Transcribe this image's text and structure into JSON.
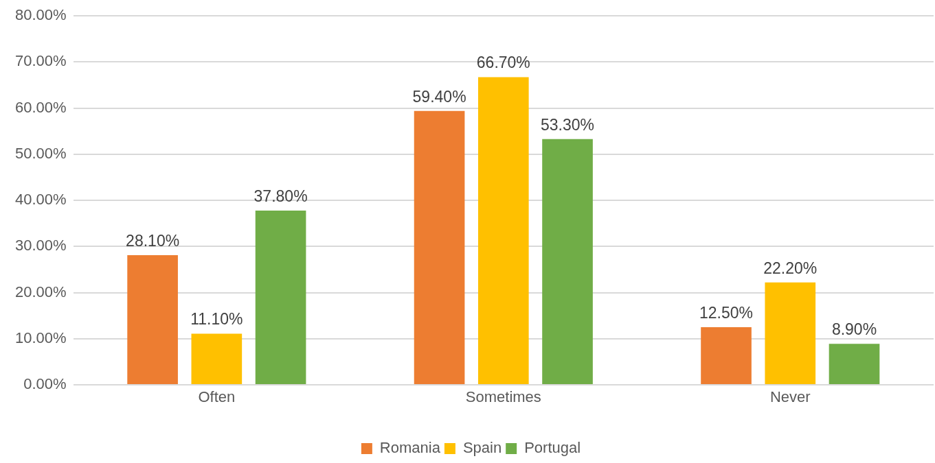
{
  "chart_data": {
    "type": "bar",
    "categories": [
      "Often",
      "Sometimes",
      "Never"
    ],
    "series": [
      {
        "name": "Romania",
        "color": "#ed7d31",
        "values": [
          28.1,
          59.4,
          12.5
        ],
        "value_labels": [
          "28.10%",
          "59.40%",
          "12.50%"
        ]
      },
      {
        "name": "Spain",
        "color": "#ffc000",
        "values": [
          11.1,
          66.7,
          22.2
        ],
        "value_labels": [
          "11.10%",
          "66.70%",
          "22.20%"
        ]
      },
      {
        "name": "Portugal",
        "color": "#70ad47",
        "values": [
          37.8,
          53.3,
          8.9
        ],
        "value_labels": [
          "37.80%",
          "53.30%",
          "8.90%"
        ]
      }
    ],
    "ylim": [
      0,
      80
    ],
    "yticks": [
      {
        "value": 0,
        "label": "0.00%"
      },
      {
        "value": 10,
        "label": "10.00%"
      },
      {
        "value": 20,
        "label": "20.00%"
      },
      {
        "value": 30,
        "label": "30.00%"
      },
      {
        "value": 40,
        "label": "40.00%"
      },
      {
        "value": 50,
        "label": "50.00%"
      },
      {
        "value": 60,
        "label": "60.00%"
      },
      {
        "value": 70,
        "label": "70.00%"
      },
      {
        "value": 80,
        "label": "80.00%"
      }
    ],
    "grid": "y",
    "legend": "bottom"
  }
}
